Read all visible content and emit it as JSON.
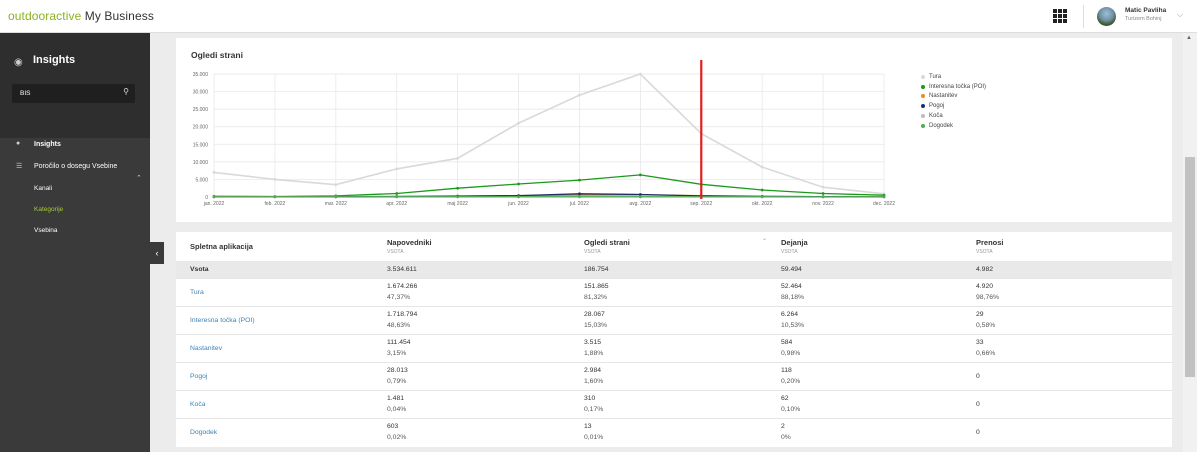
{
  "header": {
    "brand": "outdooractive",
    "product": "My Business",
    "user_name": "Matic Pavliha",
    "user_org": "Turizem Bohinj"
  },
  "sidebar": {
    "title": "Insights",
    "search_value": "BIS",
    "items": [
      {
        "label": "Insights"
      },
      {
        "label": "Poročilo o dosegu Vsebine"
      }
    ],
    "subitems": [
      {
        "label": "Kanali",
        "active": false
      },
      {
        "label": "Kategorije",
        "active": true
      },
      {
        "label": "Vsebina",
        "active": false
      }
    ]
  },
  "chart_card": {
    "title": "Ogledi strani"
  },
  "chart_data": {
    "type": "line",
    "x": [
      "jan. 2022",
      "feb. 2022",
      "mar. 2022",
      "apr. 2022",
      "maj 2022",
      "jun. 2022",
      "jul. 2022",
      "avg. 2022",
      "sep. 2022",
      "okt. 2022",
      "nov. 2022",
      "dec. 2022"
    ],
    "yticks": [
      "0",
      "5.000",
      "10.000",
      "15.000",
      "20.000",
      "25.000",
      "30.000",
      "35.000"
    ],
    "ylim": [
      0,
      35000
    ],
    "grid": true,
    "legend_position": "right",
    "marker_month_index": 8,
    "marker_color": "#e02020",
    "series": [
      {
        "name": "Tura",
        "color": "#d9d9d9",
        "values": [
          7000,
          5000,
          3500,
          8000,
          11000,
          21000,
          29000,
          35000,
          18000,
          8500,
          2800,
          900
        ]
      },
      {
        "name": "Interesna točka (POI)",
        "color": "#1a9a1a",
        "values": [
          200,
          150,
          300,
          1000,
          2500,
          3700,
          4800,
          6300,
          3600,
          2000,
          1000,
          500
        ]
      },
      {
        "name": "Nastanitev",
        "color": "#f08a1c",
        "values": [
          100,
          80,
          120,
          200,
          300,
          400,
          500,
          600,
          400,
          250,
          120,
          80
        ]
      },
      {
        "name": "Pogoj",
        "color": "#1f2d6b",
        "values": [
          30,
          30,
          50,
          100,
          200,
          400,
          900,
          700,
          300,
          150,
          80,
          30
        ]
      },
      {
        "name": "Koča",
        "color": "#bdbdbd",
        "values": [
          10,
          10,
          10,
          20,
          30,
          40,
          60,
          50,
          40,
          20,
          10,
          10
        ]
      },
      {
        "name": "Dogodek",
        "color": "#4caf50",
        "values": [
          20,
          20,
          20,
          30,
          40,
          50,
          60,
          50,
          40,
          30,
          20,
          20
        ]
      }
    ]
  },
  "table": {
    "headers": [
      {
        "label": "Spletna aplikacija",
        "sub": ""
      },
      {
        "label": "Napovedniki",
        "sub": "VSOTA"
      },
      {
        "label": "Ogledi strani",
        "sub": "VSOTA"
      },
      {
        "label": "Dejanja",
        "sub": "VSOTA"
      },
      {
        "label": "Prenosi",
        "sub": "VSOTA"
      }
    ],
    "sum_row": {
      "name": "Vsota",
      "values": [
        "3.534.611",
        "186.754",
        "59.494",
        "4.982"
      ]
    },
    "rows": [
      {
        "name": "Tura",
        "cells": [
          [
            "1.674.266",
            "47,37%"
          ],
          [
            "151.865",
            "81,32%"
          ],
          [
            "52.464",
            "88,18%"
          ],
          [
            "4.920",
            "98,76%"
          ]
        ]
      },
      {
        "name": "Interesna točka (POI)",
        "cells": [
          [
            "1.718.794",
            "48,63%"
          ],
          [
            "28.067",
            "15,03%"
          ],
          [
            "6.264",
            "10,53%"
          ],
          [
            "29",
            "0,58%"
          ]
        ]
      },
      {
        "name": "Nastanitev",
        "cells": [
          [
            "111.454",
            "3,15%"
          ],
          [
            "3.515",
            "1,88%"
          ],
          [
            "584",
            "0,98%"
          ],
          [
            "33",
            "0,66%"
          ]
        ]
      },
      {
        "name": "Pogoj",
        "cells": [
          [
            "28.013",
            "0,79%"
          ],
          [
            "2.984",
            "1,60%"
          ],
          [
            "118",
            "0,20%"
          ],
          [
            "0",
            ""
          ]
        ]
      },
      {
        "name": "Koča",
        "cells": [
          [
            "1.481",
            "0,04%"
          ],
          [
            "310",
            "0,17%"
          ],
          [
            "62",
            "0,10%"
          ],
          [
            "0",
            ""
          ]
        ]
      },
      {
        "name": "Dogodek",
        "cells": [
          [
            "603",
            "0,02%"
          ],
          [
            "13",
            "0,01%"
          ],
          [
            "2",
            "0%"
          ],
          [
            "0",
            ""
          ]
        ]
      }
    ]
  }
}
